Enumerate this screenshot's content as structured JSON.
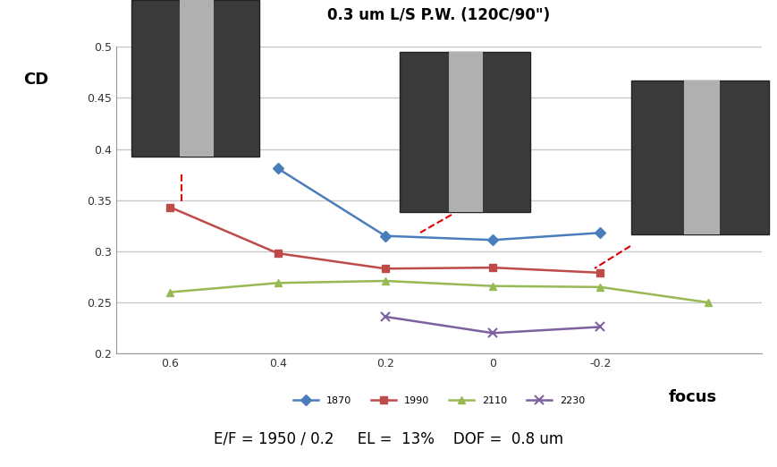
{
  "chart_data": {
    "type": "line",
    "title": "0.3 um L/S P.W. (120C/90\")",
    "y_label": "CD",
    "x_label": "focus",
    "categories": [
      "0.6",
      "0.4",
      "0.2",
      "0",
      "-0.2",
      null
    ],
    "series": [
      {
        "name": "1870",
        "color": "#4a7ebb",
        "marker": "diamond",
        "values": [
          null,
          0.381,
          0.315,
          0.311,
          0.318,
          null
        ]
      },
      {
        "name": "1990",
        "color": "#be4b48",
        "marker": "square",
        "values": [
          0.343,
          0.298,
          0.283,
          0.284,
          0.279,
          null
        ]
      },
      {
        "name": "2110",
        "color": "#98b954",
        "marker": "triangle",
        "values": [
          0.26,
          0.269,
          0.271,
          0.266,
          0.265,
          0.25
        ]
      },
      {
        "name": "2230",
        "color": "#7d60a0",
        "marker": "x",
        "values": [
          null,
          null,
          0.236,
          0.22,
          0.226,
          null
        ]
      }
    ],
    "ylim": [
      0.2,
      0.5
    ],
    "yticks": [
      0.2,
      0.25,
      0.3,
      0.35,
      0.4,
      0.45,
      0.5
    ],
    "grid": true,
    "legend": "bottom",
    "annotations": [
      "E/F = 1950 / 0.2     EL =  13%    DOF =  0.8 um"
    ]
  }
}
